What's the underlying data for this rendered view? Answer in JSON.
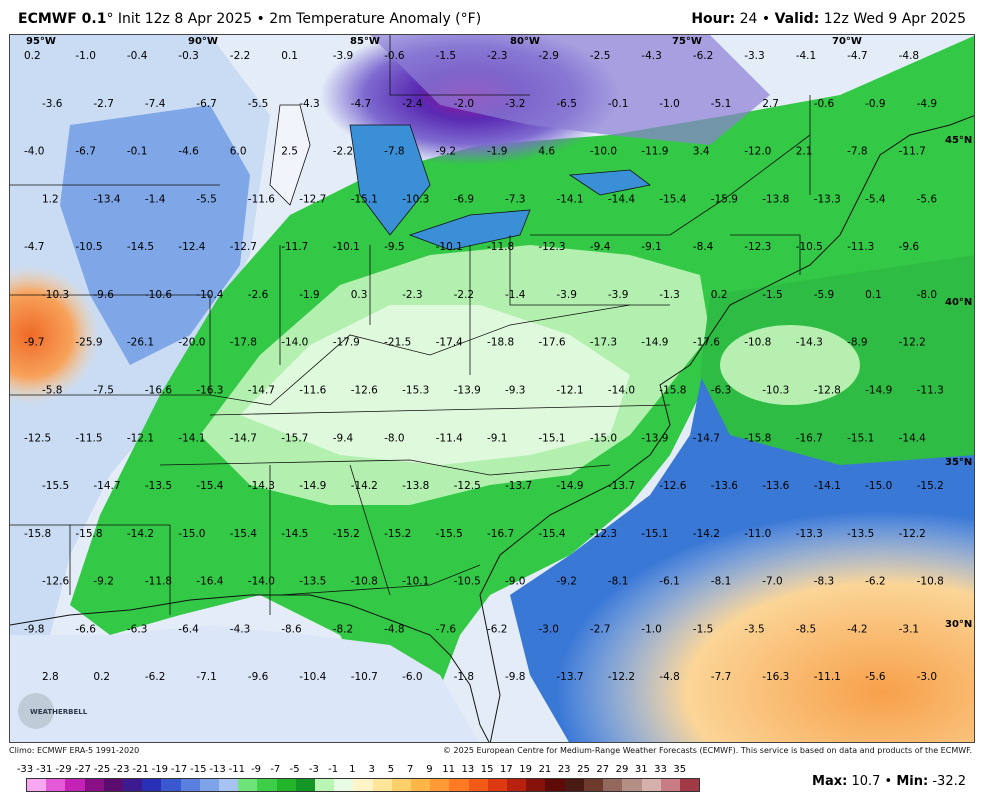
{
  "header": {
    "model": "ECMWF 0.1",
    "degree": "°",
    "init": " Init 12z 8 Apr 2025",
    "sep": " • ",
    "field": "2m Temperature Anomaly (",
    "unit": "°F",
    "field_end": ")",
    "hour_label": "Hour:",
    "hour": " 24",
    "valid_label": "Valid:",
    "valid": " 12z Wed 9 Apr 2025"
  },
  "map": {
    "longitudes": [
      "95°W",
      "90°W",
      "85°W",
      "80°W",
      "75°W",
      "70°W"
    ],
    "latitudes": [
      "45°N",
      "40°N",
      "35°N",
      "30°N"
    ],
    "logo_text": "WEATHERBELL",
    "anomaly_values": [
      "0.2",
      "-1.0",
      "-0.4",
      "-0.3",
      "-2.2",
      "0.1",
      "-3.9",
      "-0.6",
      "-1.5",
      "-2.3",
      "-2.9",
      "-2.5",
      "-4.3",
      "-6.2",
      "-3.3",
      "-4.1",
      "-4.7",
      "-4.8",
      "-3.6",
      "-2.7",
      "-7.4",
      "-6.7",
      "-5.5",
      "-4.3",
      "-4.7",
      "-2.4",
      "-2.0",
      "-3.2",
      "-6.5",
      "-0.1",
      "-1.0",
      "-5.1",
      "2.7",
      "-0.6",
      "-0.9",
      "-4.9",
      "-4.0",
      "-6.7",
      "-0.1",
      "-4.6",
      "6.0",
      "2.5",
      "-2.2",
      "-7.8",
      "-9.2",
      "-1.9",
      "4.6",
      "-10.0",
      "-11.9",
      "3.4",
      "-12.0",
      "2.1",
      "-7.8",
      "-11.7",
      "1.2",
      "-13.4",
      "-1.4",
      "-5.5",
      "-11.6",
      "-12.7",
      "-15.1",
      "-10.3",
      "-6.9",
      "-7.3",
      "-14.1",
      "-14.4",
      "-15.4",
      "-15.9",
      "-13.8",
      "-13.3",
      "-5.4",
      "-5.6",
      "-4.7",
      "-10.5",
      "-14.5",
      "-12.4",
      "-12.7",
      "-11.7",
      "-10.1",
      "-9.5",
      "-10.1",
      "-11.8",
      "-12.3",
      "-9.4",
      "-9.1",
      "-8.4",
      "-12.3",
      "-10.5",
      "-11.3",
      "-9.6",
      "-10.3",
      "-9.6",
      "-10.6",
      "-10.4",
      "-2.6",
      "-1.9",
      "0.3",
      "-2.3",
      "-2.2",
      "-1.4",
      "-3.9",
      "-3.9",
      "-1.3",
      "0.2",
      "-1.5",
      "-5.9",
      "0.1",
      "-8.0",
      "-9.7",
      "-25.9",
      "-26.1",
      "-20.0",
      "-17.8",
      "-14.0",
      "-17.9",
      "-21.5",
      "-17.4",
      "-18.8",
      "-17.6",
      "-17.3",
      "-14.9",
      "-17.6",
      "-10.8",
      "-14.3",
      "-8.9",
      "-12.2",
      "-5.8",
      "-7.5",
      "-16.6",
      "-16.3",
      "-14.7",
      "-11.6",
      "-12.6",
      "-15.3",
      "-13.9",
      "-9.3",
      "-12.1",
      "-14.0",
      "-15.8",
      "-6.3",
      "-10.3",
      "-12.8",
      "-14.9",
      "-11.3",
      "-12.5",
      "-11.5",
      "-12.1",
      "-14.1",
      "-14.7",
      "-15.7",
      "-9.4",
      "-8.0",
      "-11.4",
      "-9.1",
      "-15.1",
      "-15.0",
      "-13.9",
      "-14.7",
      "-15.8",
      "-16.7",
      "-15.1",
      "-14.4",
      "-15.5",
      "-14.7",
      "-13.5",
      "-15.4",
      "-14.3",
      "-14.9",
      "-14.2",
      "-13.8",
      "-12.5",
      "-13.7",
      "-14.9",
      "-13.7",
      "-12.6",
      "-13.6",
      "-13.6",
      "-14.1",
      "-15.0",
      "-15.2",
      "-15.8",
      "-15.8",
      "-14.2",
      "-15.0",
      "-15.4",
      "-14.5",
      "-15.2",
      "-15.2",
      "-15.5",
      "-16.7",
      "-15.4",
      "-12.3",
      "-15.1",
      "-14.2",
      "-11.0",
      "-13.3",
      "-13.5",
      "-12.2",
      "-12.6",
      "-9.2",
      "-11.8",
      "-16.4",
      "-14.0",
      "-13.5",
      "-10.8",
      "-10.1",
      "-10.5",
      "-9.0",
      "-9.2",
      "-8.1",
      "-6.1",
      "-8.1",
      "-7.0",
      "-8.3",
      "-6.2",
      "-10.8",
      "-9.8",
      "-6.6",
      "-6.3",
      "-6.4",
      "-4.3",
      "-8.6",
      "-8.2",
      "-4.8",
      "-7.6",
      "-6.2",
      "-3.0",
      "-2.7",
      "-1.0",
      "-1.5",
      "-3.5",
      "-8.5",
      "-4.2",
      "-3.1",
      "2.8",
      "0.2",
      "-6.2",
      "-7.1",
      "-9.6",
      "-10.4",
      "-10.7",
      "-6.0",
      "-1.8",
      "-9.8",
      "-13.7",
      "-12.2",
      "-4.8",
      "-7.7",
      "-16.3",
      "-11.1",
      "-5.6",
      "-3.0"
    ]
  },
  "footer": {
    "climo": "Climo: ECMWF ERA-5 1991-2020",
    "copyright": "© 2025 European Centre for Medium-Range Weather Forecasts (ECMWF). This service is based on data and products of the ECMWF."
  },
  "scale": {
    "labels": [
      "-33",
      "-31",
      "-29",
      "-27",
      "-25",
      "-23",
      "-21",
      "-19",
      "-17",
      "-15",
      "-13",
      "-11",
      "-9",
      "-7",
      "-5",
      "-3",
      "-1",
      "1",
      "3",
      "5",
      "7",
      "9",
      "11",
      "13",
      "15",
      "17",
      "19",
      "21",
      "23",
      "25",
      "27",
      "29",
      "31",
      "33",
      "35"
    ],
    "colors": [
      "#f7a8f0",
      "#e45ad6",
      "#c322b4",
      "#8a0f86",
      "#5a0d6e",
      "#3c1a8f",
      "#2a2fb8",
      "#3a58cf",
      "#5a7fdf",
      "#7fa3e8",
      "#a7c3f1",
      "#6fe27a",
      "#3fce48",
      "#22b52c",
      "#149626",
      "#b9f5b3",
      "#e8fbe4",
      "#fff4c8",
      "#ffe59a",
      "#ffd06a",
      "#ffb648",
      "#ff9a36",
      "#ff7a22",
      "#f25a18",
      "#dd3a12",
      "#b8210d",
      "#871209",
      "#5e0a08",
      "#4a1a14",
      "#6e3a2e",
      "#94685c",
      "#b48f86",
      "#d6b0aa",
      "#c87c86",
      "#a23a46"
    ]
  },
  "stats": {
    "max_label": "Max:",
    "max": " 10.7",
    "sep": " • ",
    "min_label": "Min:",
    "min": " -32.2"
  },
  "colors": {
    "ocean": "#ffd98a",
    "gulf": "#d7e8fb"
  }
}
